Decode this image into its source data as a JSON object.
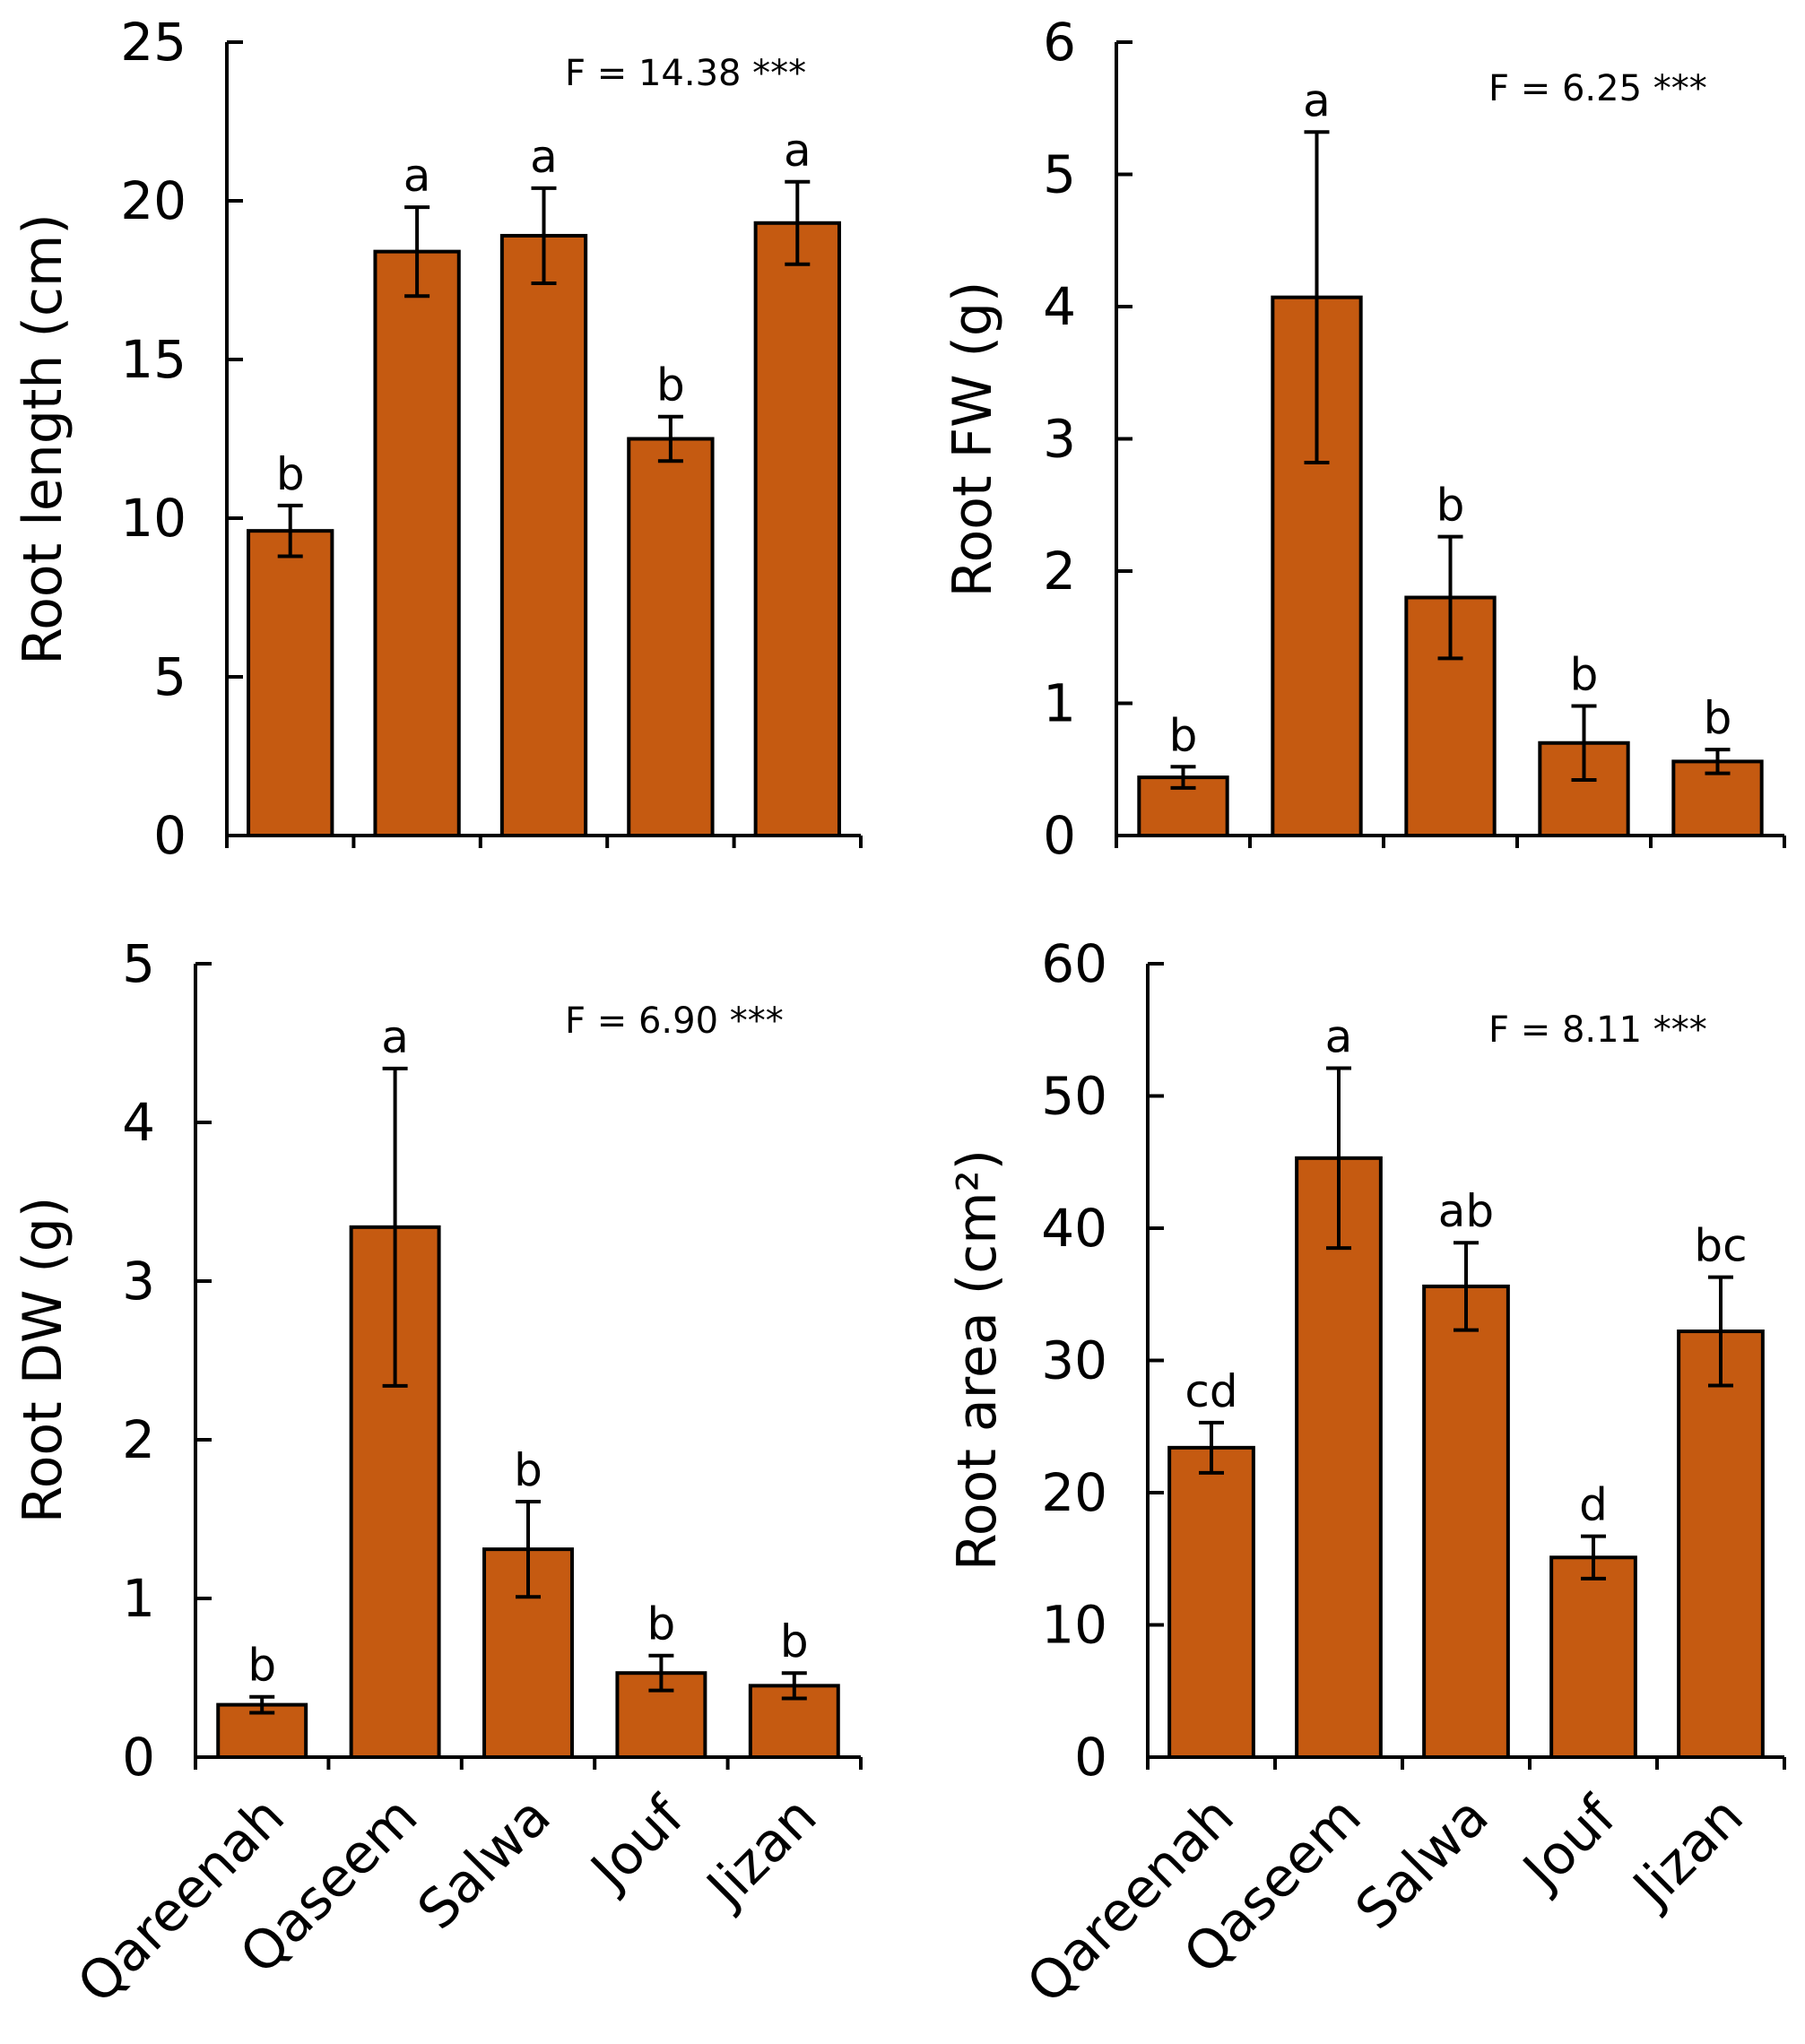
{
  "colors": {
    "bar": "#C55A11",
    "axis": "#000000",
    "background": "#ffffff"
  },
  "chart_data": [
    {
      "type": "bar",
      "categories": [
        "Qareenah",
        "Qaseem",
        "Salwa",
        "Jouf",
        "Jizan"
      ],
      "values": [
        9.6,
        18.4,
        18.9,
        12.5,
        19.3
      ],
      "errors": [
        0.8,
        1.4,
        1.5,
        0.7,
        1.3
      ],
      "letters": [
        "b",
        "a",
        "a",
        "b",
        "a"
      ],
      "ylabel": "Root length (cm)",
      "ylim": [
        0,
        25
      ],
      "yticks": [
        0,
        5,
        10,
        15,
        20,
        25
      ],
      "ytick_labels": [
        "0",
        "5",
        "10",
        "15",
        "20",
        "25"
      ],
      "annotation": "F = 14.38 ***",
      "show_category_labels": false
    },
    {
      "type": "bar",
      "categories": [
        "Qareenah",
        "Qaseem",
        "Salwa",
        "Jouf",
        "Jizan"
      ],
      "values": [
        0.44,
        4.07,
        1.8,
        0.7,
        0.56
      ],
      "errors": [
        0.08,
        1.25,
        0.46,
        0.28,
        0.09
      ],
      "letters": [
        "b",
        "a",
        "b",
        "b",
        "b"
      ],
      "ylabel": "Root FW (g)",
      "ylim": [
        0,
        6
      ],
      "yticks": [
        0,
        1,
        2,
        3,
        4,
        5,
        6
      ],
      "ytick_labels": [
        "0",
        "1",
        "2",
        "3",
        "4",
        "5",
        "6"
      ],
      "annotation": "F = 6.25 ***",
      "show_category_labels": false
    },
    {
      "type": "bar",
      "categories": [
        "Qareenah",
        "Qaseem",
        "Salwa",
        "Jouf",
        "Jizan"
      ],
      "values": [
        0.33,
        3.34,
        1.31,
        0.53,
        0.45
      ],
      "errors": [
        0.05,
        1.0,
        0.3,
        0.11,
        0.08
      ],
      "letters": [
        "b",
        "a",
        "b",
        "b",
        "b"
      ],
      "ylabel": "Root DW (g)",
      "ylim": [
        0,
        5
      ],
      "yticks": [
        0,
        1,
        2,
        3,
        4,
        5
      ],
      "ytick_labels": [
        "0",
        "1",
        "2",
        "3",
        "4",
        "5"
      ],
      "annotation": "F = 6.90 ***",
      "show_category_labels": true
    },
    {
      "type": "bar",
      "categories": [
        "Qareenah",
        "Qaseem",
        "Salwa",
        "Jouf",
        "Jizan"
      ],
      "values": [
        23.4,
        45.3,
        35.6,
        15.1,
        32.2
      ],
      "errors": [
        1.9,
        6.8,
        3.3,
        1.6,
        4.1
      ],
      "letters": [
        "cd",
        "a",
        "ab",
        "d",
        "bc"
      ],
      "ylabel": "Root area (cm²)",
      "ylim": [
        0,
        60
      ],
      "yticks": [
        0,
        10,
        20,
        30,
        40,
        50,
        60
      ],
      "ytick_labels": [
        "0",
        "10",
        "20",
        "30",
        "40",
        "50",
        "60"
      ],
      "annotation": "F = 8.11 ***",
      "show_category_labels": true
    }
  ]
}
